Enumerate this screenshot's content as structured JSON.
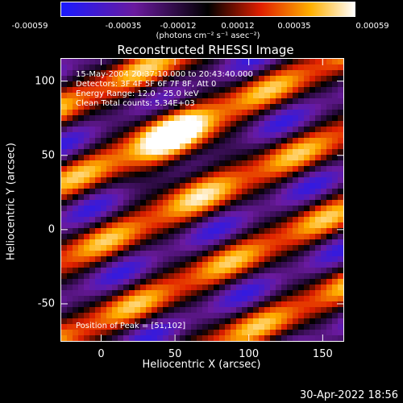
{
  "colorbar": {
    "tick_labels": [
      "-0.00059",
      "-0.00035",
      "-0.00012",
      "0.00012",
      "0.00035",
      "0.00059"
    ],
    "units_label": "(photons cm⁻² s⁻¹ asec⁻²)",
    "colors": [
      "#1a1aff",
      "#6a1a9e",
      "#000000",
      "#e01f00",
      "#ffb000",
      "#ffffff"
    ]
  },
  "plot_title": "Reconstructed RHESSI Image",
  "annotations": {
    "time_range": "15-May-2004 20:37:10.000 to 20:43:40.000",
    "detectors": "Detectors: 3F 4F 5F 6F 7F 8F, Att 0",
    "energy_range": "Energy Range: 12.0 - 25.0 keV",
    "clean": "Clean     Total counts: 5.34E+03",
    "peak": "Position of Peak = [51,102]"
  },
  "footer": {
    "date": "30-Apr-2022 18:56"
  },
  "chart_data": {
    "type": "heatmap",
    "title": "Reconstructed RHESSI Image",
    "xlabel": "Heliocentric X (arcsec)",
    "ylabel": "Heliocentric Y (arcsec)",
    "xlim": [
      -27,
      164
    ],
    "ylim": [
      -75,
      115
    ],
    "x_ticks": [
      0,
      50,
      100,
      150
    ],
    "y_ticks": [
      -50,
      0,
      50,
      100
    ],
    "color_range": [
      -0.00059,
      0.00059
    ],
    "colormap": "blue-purple-black-red-orange-yellow-white",
    "peak_position": [
      51,
      102
    ],
    "stripe_orientation": "diagonal, lower-left to upper-right",
    "grid": false
  }
}
